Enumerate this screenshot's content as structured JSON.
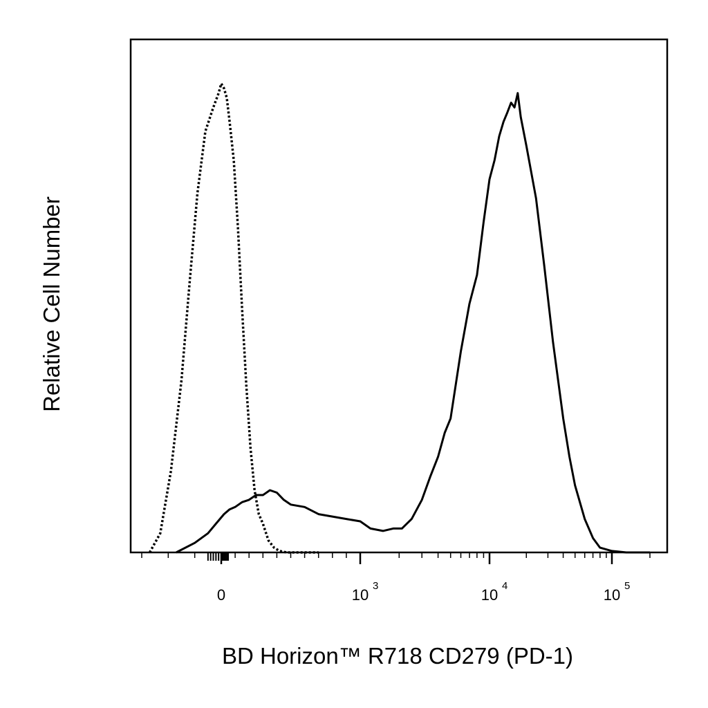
{
  "chart_data": {
    "type": "line",
    "title": "",
    "xlabel": "BD Horizon™ R718 CD279 (PD-1)",
    "ylabel": "Relative Cell Number",
    "x_scale": "biexponential",
    "xlim": [
      -300,
      200000
    ],
    "ylim": [
      0,
      100
    ],
    "grid": false,
    "legend": "none",
    "x_ticks": [
      {
        "value": 0,
        "base": "0",
        "exp": ""
      },
      {
        "value": 1000,
        "base": "10",
        "exp": "3"
      },
      {
        "value": 10000,
        "base": "10",
        "exp": "4"
      },
      {
        "value": 100000,
        "base": "10",
        "exp": "5"
      }
    ],
    "series": [
      {
        "style": "dotted",
        "color": "#000000",
        "x": [
          -270,
          -230,
          -190,
          -150,
          -120,
          -90,
          -60,
          -30,
          -10,
          0,
          20,
          40,
          60,
          90,
          120,
          150,
          180,
          210,
          240,
          270,
          300,
          340,
          380,
          420,
          470,
          530,
          600,
          700
        ],
        "y": [
          0,
          4,
          17,
          36,
          56,
          75,
          88,
          93,
          96,
          98,
          97,
          95,
          90,
          82,
          68,
          51,
          35,
          22,
          13,
          8,
          6,
          2.5,
          1,
          0.3,
          0,
          0,
          0,
          0
        ]
      },
      {
        "style": "solid",
        "color": "#000000",
        "x": [
          -170,
          -100,
          -50,
          -20,
          20,
          60,
          100,
          150,
          200,
          250,
          300,
          350,
          400,
          450,
          500,
          600,
          700,
          800,
          900,
          1000,
          1200,
          1500,
          1800,
          2100,
          2500,
          3000,
          3500,
          4000,
          4500,
          5000,
          6000,
          7000,
          8000,
          9000,
          10000,
          11000,
          12000,
          13000,
          14000,
          15000,
          16000,
          17000,
          18000,
          20000,
          24000,
          28000,
          33000,
          40000,
          45000,
          50000,
          60000,
          70000,
          80000,
          100000,
          130000,
          200000
        ],
        "y": [
          0,
          2,
          4,
          6,
          8,
          9,
          9.5,
          10.5,
          11,
          12,
          12,
          13,
          12.5,
          11,
          10,
          9.5,
          8,
          7.5,
          7,
          6.5,
          5,
          4.5,
          5,
          5,
          7,
          11,
          16,
          20,
          25,
          28,
          42,
          52,
          58,
          69,
          78,
          82,
          87,
          90,
          92,
          94,
          93,
          96,
          91,
          85,
          74,
          60,
          44,
          28,
          20,
          14,
          7,
          3,
          1,
          0.3,
          0,
          0
        ]
      }
    ]
  }
}
